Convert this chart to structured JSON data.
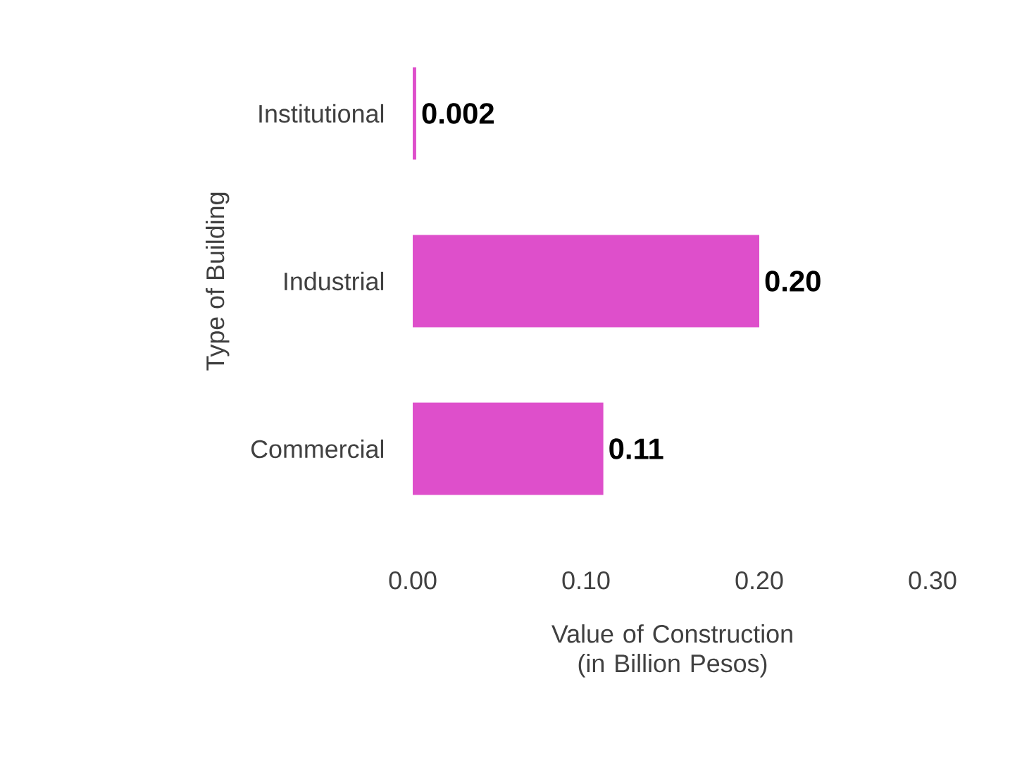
{
  "chart_data": {
    "type": "bar",
    "orientation": "horizontal",
    "categories": [
      "Institutional",
      "Industrial",
      "Commercial"
    ],
    "values": [
      0.002,
      0.2,
      0.11
    ],
    "value_labels": [
      "0.002",
      "0.20",
      "0.11"
    ],
    "color": "#de4fcb",
    "xlim": [
      0,
      0.3
    ],
    "xticks": [
      {
        "value": 0,
        "label": "0.00"
      },
      {
        "value": 0.1,
        "label": "0.10"
      },
      {
        "value": 0.2,
        "label": "0.20"
      },
      {
        "value": 0.3,
        "label": "0.30"
      }
    ],
    "xlabel": "Value of Construction (in Billion Pesos)",
    "ylabel": "Type of Building"
  }
}
